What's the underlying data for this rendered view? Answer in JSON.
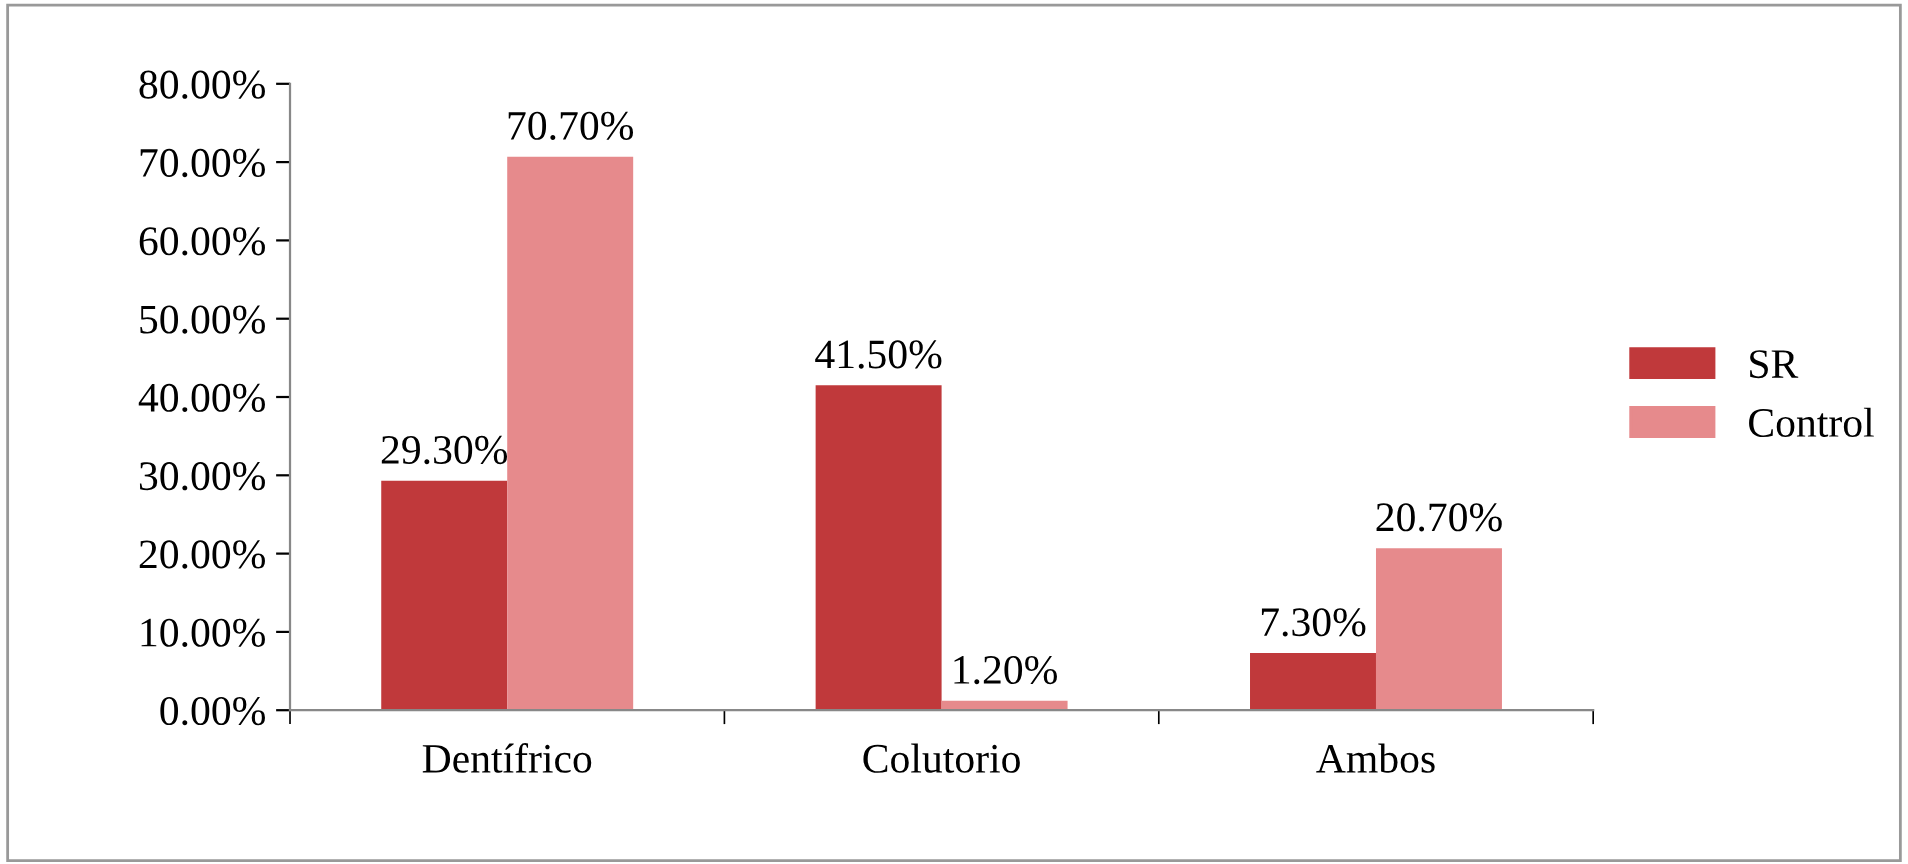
{
  "chart_data": {
    "type": "bar",
    "categories": [
      "Dentífrico",
      "Colutorio",
      "Ambos"
    ],
    "series": [
      {
        "name": "SR",
        "color": "#c0393b",
        "values": [
          29.3,
          41.5,
          7.3
        ],
        "value_labels": [
          "29.30%",
          "41.50%",
          "7.30%"
        ]
      },
      {
        "name": "Control",
        "color": "#e68a8c",
        "values": [
          70.7,
          1.2,
          20.7
        ],
        "value_labels": [
          "70.70%",
          "1.20%",
          "20.70%"
        ]
      }
    ],
    "ylim": [
      0,
      80
    ],
    "yticks": [
      {
        "value": 0,
        "label": "0.00%"
      },
      {
        "value": 10,
        "label": "10.00%"
      },
      {
        "value": 20,
        "label": "20.00%"
      },
      {
        "value": 30,
        "label": "30.00%"
      },
      {
        "value": 40,
        "label": "40.00%"
      },
      {
        "value": 50,
        "label": "50.00%"
      },
      {
        "value": 60,
        "label": "60.00%"
      },
      {
        "value": 70,
        "label": "70.00%"
      },
      {
        "value": 80,
        "label": "80.00%"
      }
    ],
    "grid": false,
    "legend": "right"
  }
}
